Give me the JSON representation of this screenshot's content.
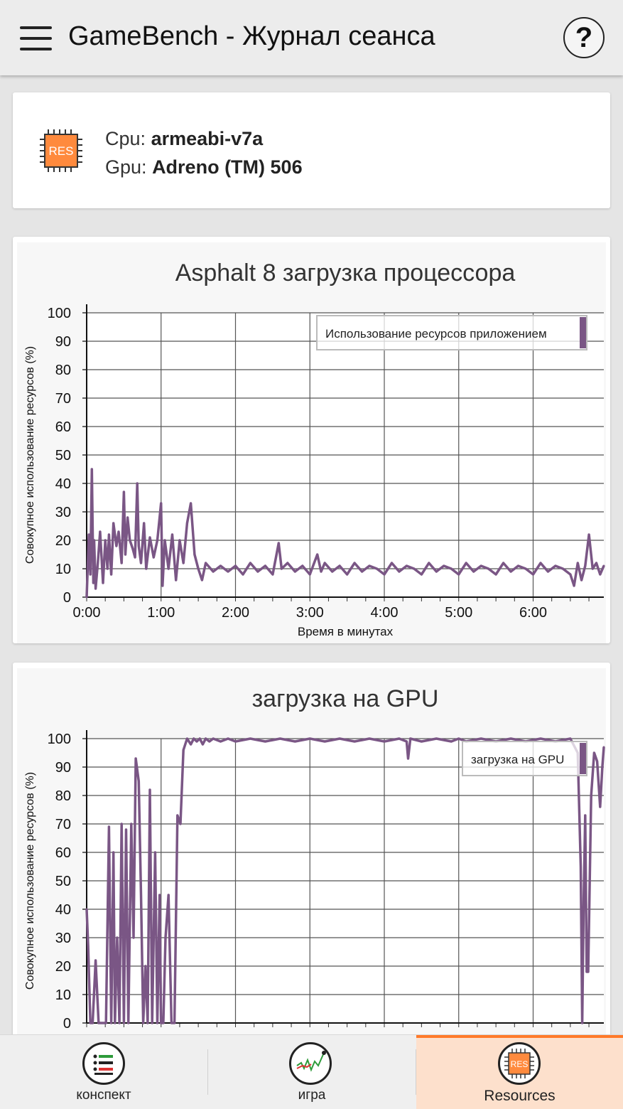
{
  "header": {
    "title": "GameBench - Журнал сеанса",
    "help_label": "?",
    "menu_icon": "hamburger-menu-icon"
  },
  "device": {
    "chip_label": "RES",
    "cpu_label": "Cpu:",
    "cpu_value": "armeabi-v7a",
    "gpu_label": "Gpu:",
    "gpu_value": "Adreno (TM) 506",
    "accent_color": "#ff8a3d"
  },
  "chart_data": [
    {
      "type": "line",
      "title": "Asphalt 8 загрузка процессора",
      "xlabel": "Время в минутах",
      "ylabel": "Совокупное использование ресурсов (%)",
      "ylim": [
        0,
        100
      ],
      "xlim": [
        0,
        6.95
      ],
      "yticks": [
        "0",
        "10",
        "20",
        "30",
        "40",
        "50",
        "60",
        "70",
        "80",
        "90",
        "100"
      ],
      "xticks": [
        "0:00",
        "1:00",
        "2:00",
        "3:00",
        "4:00",
        "5:00",
        "6:00"
      ],
      "grid": true,
      "legend_position": "top-right",
      "series": [
        {
          "name": "Использование ресурсов приложением",
          "color": "#7a5685",
          "x": [
            0.0,
            0.03,
            0.05,
            0.07,
            0.09,
            0.1,
            0.12,
            0.15,
            0.18,
            0.22,
            0.25,
            0.28,
            0.3,
            0.33,
            0.36,
            0.4,
            0.43,
            0.47,
            0.5,
            0.52,
            0.55,
            0.58,
            0.62,
            0.65,
            0.68,
            0.7,
            0.73,
            0.77,
            0.8,
            0.85,
            0.9,
            0.95,
            1.0,
            1.02,
            1.05,
            1.1,
            1.15,
            1.2,
            1.25,
            1.3,
            1.35,
            1.4,
            1.45,
            1.5,
            1.55,
            1.6,
            1.7,
            1.8,
            1.9,
            2.0,
            2.1,
            2.2,
            2.3,
            2.4,
            2.5,
            2.58,
            2.62,
            2.7,
            2.8,
            2.9,
            3.0,
            3.1,
            3.15,
            3.2,
            3.3,
            3.4,
            3.5,
            3.6,
            3.7,
            3.8,
            3.9,
            4.0,
            4.1,
            4.2,
            4.3,
            4.4,
            4.5,
            4.6,
            4.7,
            4.8,
            4.9,
            5.0,
            5.1,
            5.2,
            5.3,
            5.4,
            5.5,
            5.6,
            5.7,
            5.8,
            5.9,
            6.0,
            6.1,
            6.2,
            6.3,
            6.4,
            6.5,
            6.55,
            6.6,
            6.65,
            6.7,
            6.75,
            6.8,
            6.85,
            6.9,
            6.95
          ],
          "values": [
            0,
            22,
            8,
            45,
            5,
            20,
            3,
            12,
            23,
            5,
            20,
            10,
            22,
            8,
            26,
            18,
            23,
            12,
            37,
            15,
            28,
            20,
            17,
            14,
            40,
            18,
            12,
            26,
            10,
            21,
            14,
            20,
            33,
            4,
            20,
            10,
            22,
            6,
            20,
            12,
            26,
            33,
            15,
            10,
            6,
            12,
            9,
            11,
            9,
            11,
            8,
            12,
            9,
            11,
            8,
            19,
            10,
            12,
            9,
            11,
            8,
            15,
            9,
            12,
            9,
            11,
            8,
            12,
            9,
            11,
            10,
            8,
            12,
            9,
            11,
            10,
            8,
            12,
            9,
            11,
            10,
            8,
            12,
            9,
            11,
            10,
            8,
            12,
            9,
            11,
            10,
            8,
            12,
            9,
            11,
            10,
            8,
            4,
            12,
            6,
            11,
            22,
            10,
            12,
            8,
            11
          ]
        }
      ]
    },
    {
      "type": "line",
      "title": "загрузка на GPU",
      "xlabel": "",
      "ylabel": "Совокупное использование ресурсов (%)",
      "ylim": [
        0,
        100
      ],
      "xlim": [
        0,
        6.95
      ],
      "yticks": [
        "0",
        "10",
        "20",
        "30",
        "40",
        "50",
        "60",
        "70",
        "80",
        "90",
        "100"
      ],
      "grid": true,
      "legend_position": "top-right",
      "series": [
        {
          "name": "загрузка на GPU",
          "color": "#7a5685",
          "x": [
            0.0,
            0.02,
            0.05,
            0.08,
            0.12,
            0.16,
            0.2,
            0.22,
            0.26,
            0.3,
            0.33,
            0.36,
            0.38,
            0.41,
            0.44,
            0.47,
            0.5,
            0.53,
            0.56,
            0.6,
            0.63,
            0.66,
            0.7,
            0.73,
            0.76,
            0.79,
            0.82,
            0.85,
            0.88,
            0.92,
            0.95,
            0.98,
            1.0,
            1.03,
            1.06,
            1.1,
            1.14,
            1.18,
            1.22,
            1.26,
            1.3,
            1.35,
            1.4,
            1.44,
            1.48,
            1.52,
            1.56,
            1.6,
            1.65,
            1.7,
            1.8,
            1.9,
            2.0,
            2.2,
            2.4,
            2.6,
            2.8,
            3.0,
            3.2,
            3.4,
            3.6,
            3.8,
            4.0,
            4.2,
            4.3,
            4.32,
            4.35,
            4.5,
            4.7,
            4.9,
            5.0,
            5.1,
            5.3,
            5.5,
            5.7,
            5.9,
            6.1,
            6.3,
            6.5,
            6.6,
            6.64,
            6.66,
            6.68,
            6.7,
            6.72,
            6.74,
            6.78,
            6.82,
            6.86,
            6.9,
            6.93,
            6.95
          ],
          "values": [
            40,
            27,
            0,
            0,
            22,
            0,
            0,
            0,
            0,
            69,
            0,
            60,
            0,
            30,
            0,
            70,
            0,
            68,
            0,
            70,
            30,
            93,
            85,
            45,
            0,
            20,
            0,
            82,
            0,
            60,
            0,
            45,
            0,
            0,
            30,
            45,
            0,
            0,
            73,
            70,
            96,
            100,
            98,
            100,
            99,
            100,
            98,
            100,
            99,
            100,
            99,
            100,
            99,
            100,
            99,
            100,
            99,
            100,
            99,
            100,
            99,
            100,
            99,
            100,
            99,
            93,
            100,
            99,
            100,
            99,
            100,
            99,
            100,
            99,
            100,
            99,
            100,
            99,
            100,
            95,
            55,
            0,
            44,
            73,
            18,
            18,
            80,
            95,
            92,
            76,
            90,
            97
          ]
        }
      ]
    }
  ],
  "bottom_nav": {
    "items": [
      {
        "label": "конспект",
        "icon": "summary-list-icon",
        "active": false
      },
      {
        "label": "игра",
        "icon": "game-chart-icon",
        "active": false
      },
      {
        "label": "Resources",
        "icon": "res-chip-icon",
        "chip_label": "RES",
        "active": true
      }
    ],
    "active_color": "#ff7a2a"
  }
}
